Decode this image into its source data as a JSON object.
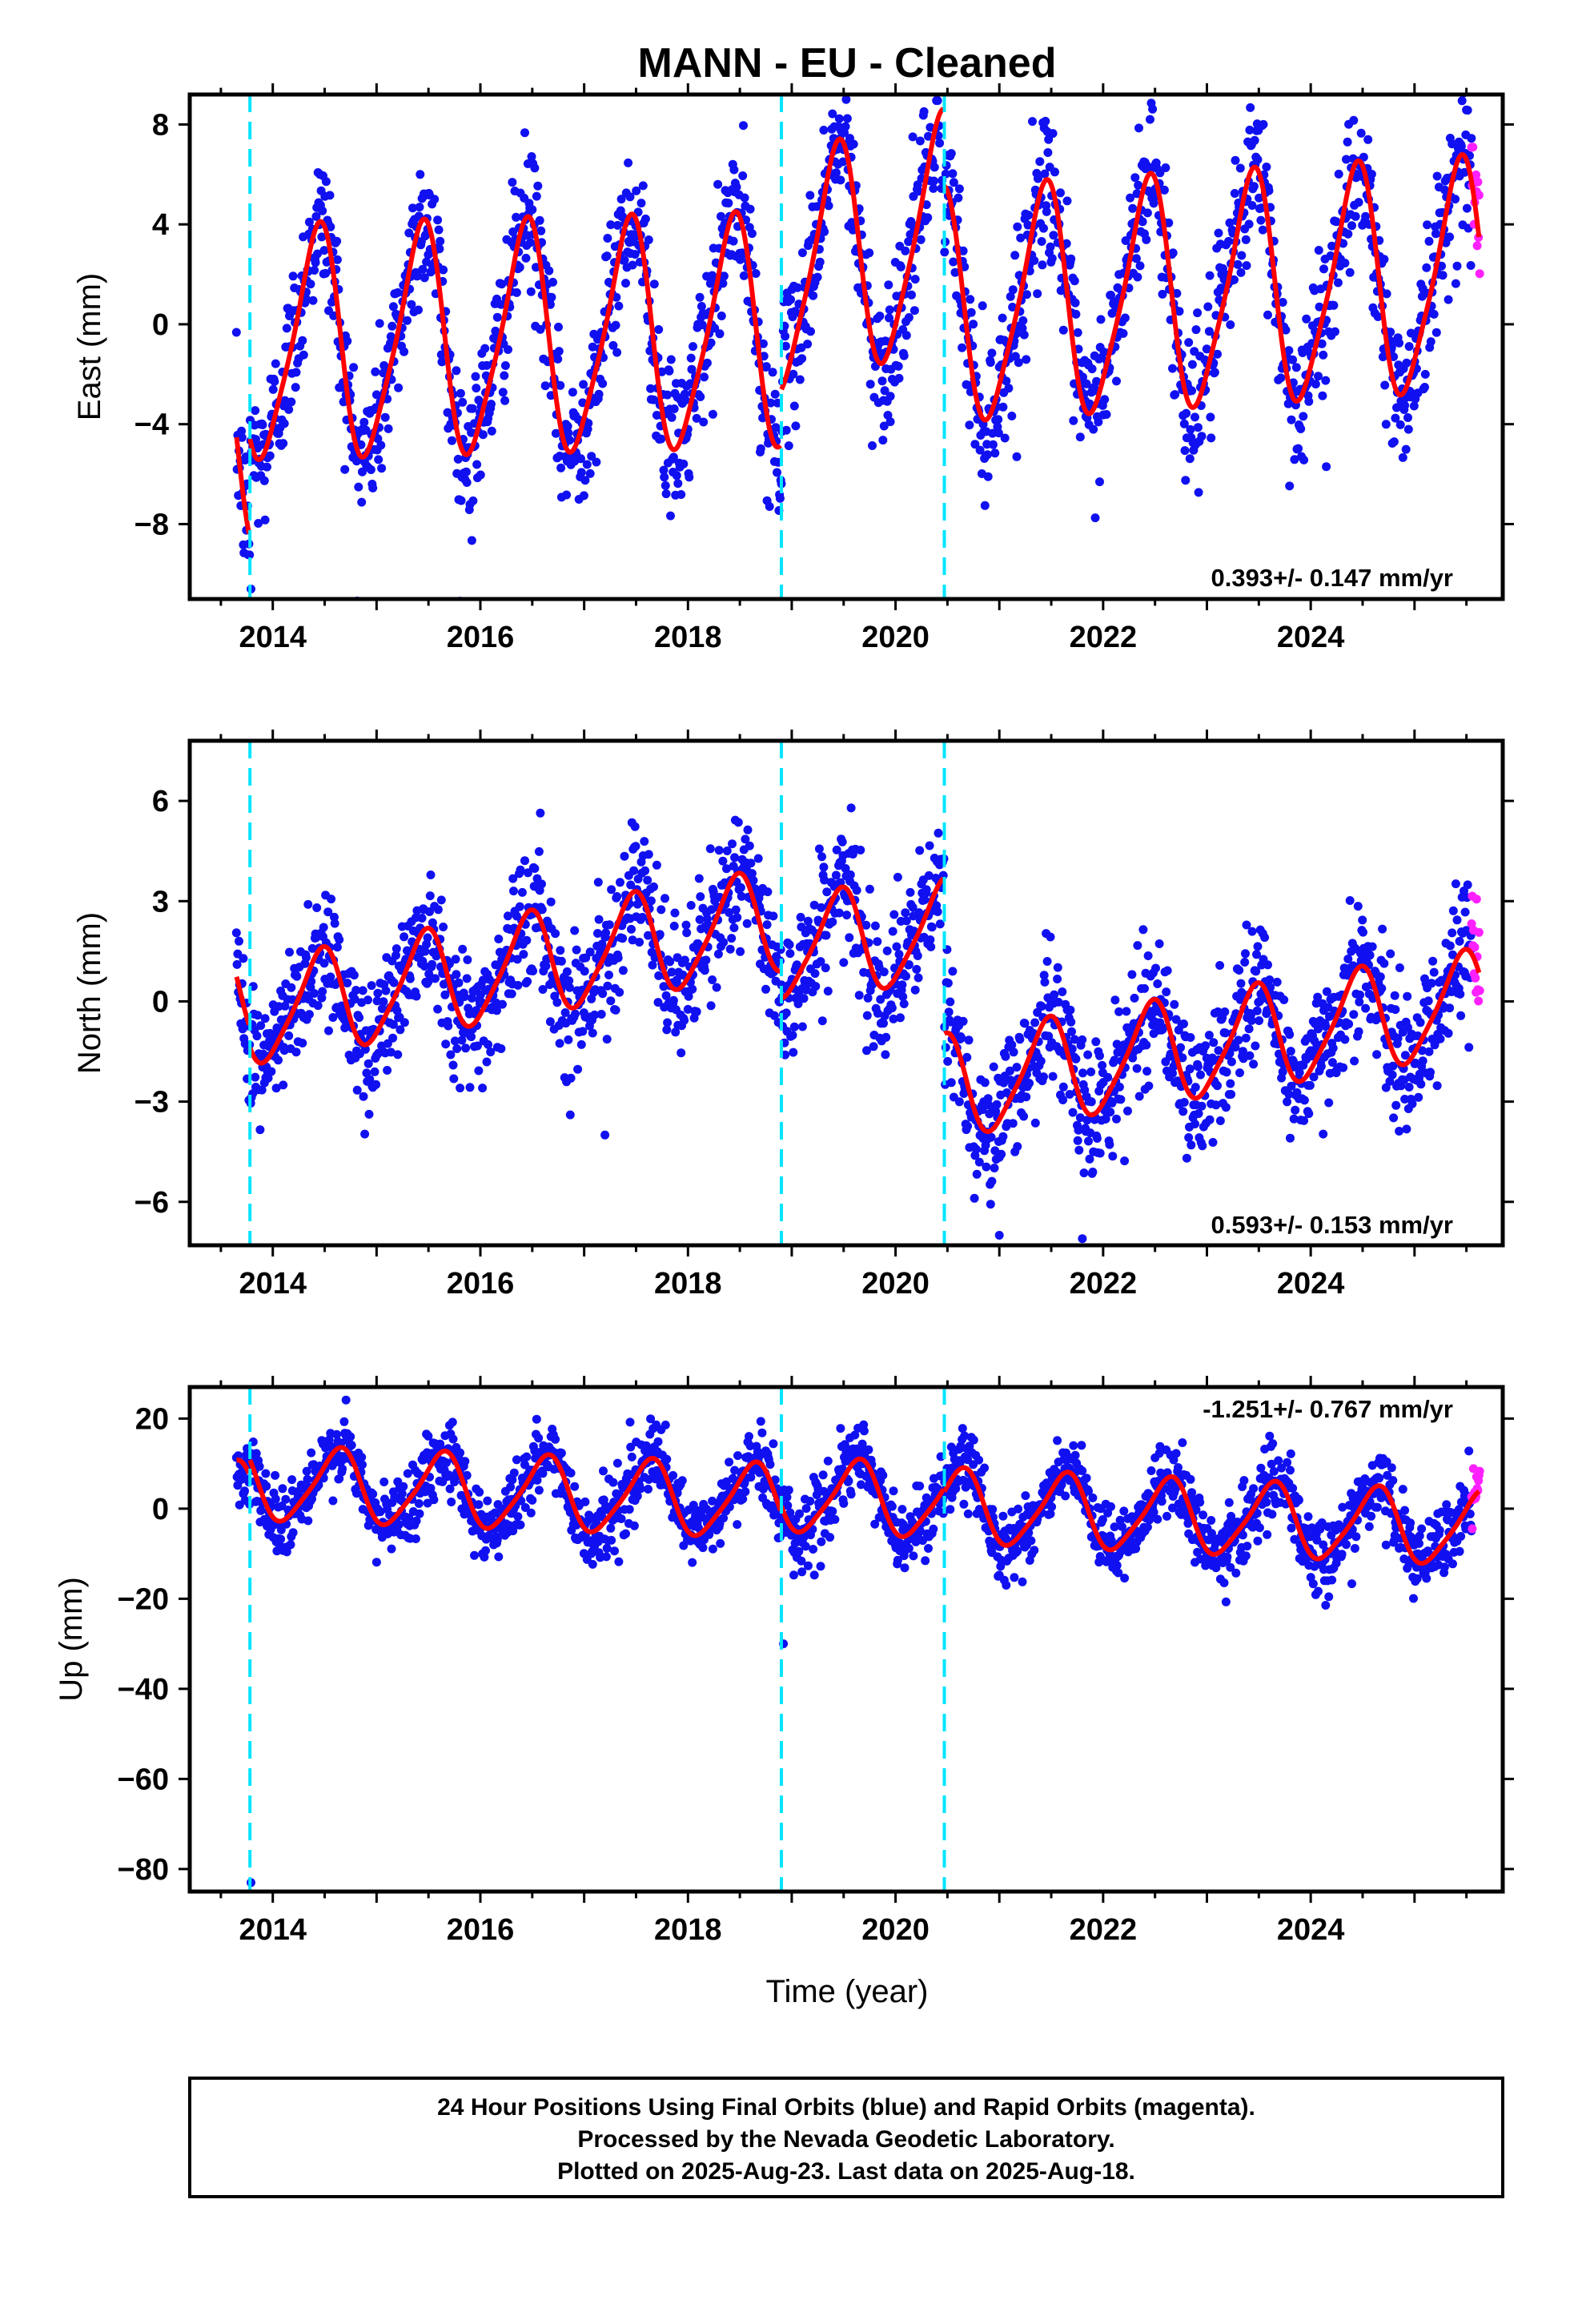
{
  "chart_data": {
    "type": "scatter",
    "title": "MANN  - EU - Cleaned",
    "xlabel": "Time (year)",
    "x_ticks": [
      "2014",
      "2016",
      "2018",
      "2020",
      "2022",
      "2024"
    ],
    "xlim": [
      2013.2,
      2025.85
    ],
    "data_start": 2013.65,
    "data_end": 2025.63,
    "rapid_start": 2025.55,
    "offsets": [
      2013.78,
      2018.9,
      2020.47
    ],
    "colors": {
      "final": "#1010f0",
      "rapid": "#ff20ff",
      "fit": "#ff0000",
      "offset": "#00e5ff"
    },
    "panels": [
      {
        "name": "East",
        "ylabel": "East (mm)",
        "ylim": [
          -11,
          9.2
        ],
        "y_ticks": [
          8,
          4,
          0,
          -4,
          -8
        ],
        "y_tick_labels": [
          "8",
          "4",
          "0",
          "−4",
          "−8"
        ],
        "rate": "0.393+/- 0.147 mm/yr",
        "amplitude": 4.5,
        "phase_peak": 0.42,
        "scatter_sd": 1.5,
        "segments": [
          {
            "start": 2013.65,
            "end": 2013.78,
            "offset": -5.0,
            "trend": 0.8
          },
          {
            "start": 2013.78,
            "end": 2018.9,
            "offset": -0.9,
            "trend": 0.1
          },
          {
            "start": 2018.9,
            "end": 2020.47,
            "offset": 1.8,
            "trend": 1.2
          },
          {
            "start": 2020.47,
            "end": 2025.63,
            "offset": 0.6,
            "trend": 0.25
          }
        ],
        "outliers": [
          [
            2013.79,
            -10.6
          ],
          [
            2024.15,
            -5.7
          ],
          [
            2019.95,
            -3.9
          ]
        ]
      },
      {
        "name": "North",
        "ylabel": "North (mm)",
        "ylim": [
          -7.3,
          7.8
        ],
        "y_ticks": [
          6,
          3,
          0,
          -3,
          -6
        ],
        "y_tick_labels": [
          "6",
          "3",
          "0",
          "−3",
          "−6"
        ],
        "rate": "0.593+/- 0.153 mm/yr",
        "amplitude": 1.5,
        "phase_peak": 0.45,
        "scatter_sd": 1.0,
        "segments": [
          {
            "start": 2013.65,
            "end": 2013.78,
            "offset": 0.2,
            "trend": 0.0
          },
          {
            "start": 2013.78,
            "end": 2018.9,
            "offset": -0.4,
            "trend": 0.55
          },
          {
            "start": 2018.9,
            "end": 2020.47,
            "offset": 1.6,
            "trend": 0.3
          },
          {
            "start": 2020.47,
            "end": 2025.63,
            "offset": -2.6,
            "trend": 0.5
          }
        ],
        "outliers": [
          [
            2021.0,
            -7.0
          ],
          [
            2021.8,
            -7.1
          ],
          [
            2017.2,
            -4.0
          ]
        ]
      },
      {
        "name": "Up",
        "ylabel": "Up (mm)",
        "ylim": [
          -85,
          27
        ],
        "y_ticks": [
          20,
          0,
          -20,
          -40,
          -60,
          -80
        ],
        "y_tick_labels": [
          "20",
          "0",
          "−20",
          "−40",
          "−60",
          "−80"
        ],
        "rate": "-1.251+/- 0.767 mm/yr",
        "amplitude": 8.0,
        "phase_peak": 0.62,
        "scatter_sd": 4.0,
        "segments": [
          {
            "start": 2013.65,
            "end": 2013.78,
            "offset": 2.0,
            "trend": 0.0
          },
          {
            "start": 2013.78,
            "end": 2018.9,
            "offset": 5.5,
            "trend": -0.8
          },
          {
            "start": 2018.9,
            "end": 2020.47,
            "offset": 3.0,
            "trend": -1.0
          },
          {
            "start": 2020.47,
            "end": 2025.63,
            "offset": 0.5,
            "trend": -1.0
          }
        ],
        "outliers": [
          [
            2013.79,
            -83
          ],
          [
            2018.92,
            -30
          ]
        ]
      }
    ]
  },
  "footer": {
    "line1": "24 Hour Positions Using Final Orbits (blue) and Rapid Orbits (magenta).",
    "line2": "Processed by the Nevada Geodetic Laboratory.",
    "line3": "Plotted on 2025-Aug-23. Last data on 2025-Aug-18."
  }
}
